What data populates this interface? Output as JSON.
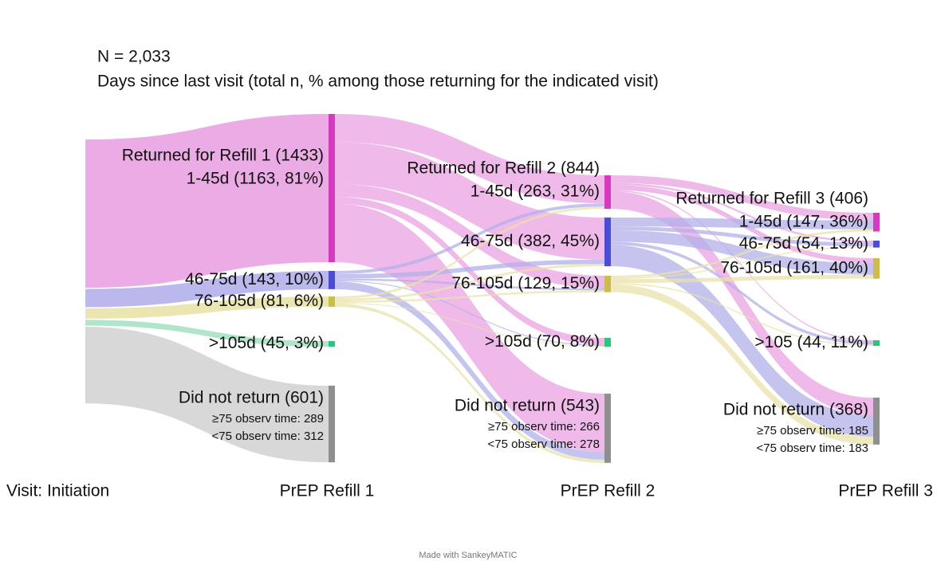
{
  "chart_data": {
    "type": "sankey",
    "n": "N = 2,033",
    "subtitle": "Days since last visit (total n, % among those returning for the indicated visit)",
    "source_label": "Visit: Initiation",
    "stages": [
      {
        "name": "PrEP Refill 1",
        "header": "Returned for Refill 1 (1433)",
        "nodes": [
          {
            "label": "1-45d (1163, 81%)",
            "value": 1163,
            "color": "#d63bbf",
            "flow_color": "#e9a2e1",
            "flows": [
              220,
              330,
              100,
              55,
              458
            ]
          },
          {
            "label": "46-75d (143, 10%)",
            "value": 143,
            "color": "#4b4bd6",
            "flow_color": "#b2b0ea",
            "flows": [
              25,
              35,
              15,
              8,
              60
            ]
          },
          {
            "label": "76-105d (81, 6%)",
            "value": 81,
            "color": "#cbbd4c",
            "flow_color": "#e9e2a9",
            "flows": [
              18,
              17,
              14,
              7,
              25
            ]
          },
          {
            "label": ">105d (45, 3%)",
            "value": 45,
            "color": "#2ec27e",
            "flow_color": "#a9e2c3"
          },
          {
            "label": "Did not return (601)",
            "value": 601,
            "color": "#8f8f8f",
            "flow_color": "#d4d4d4",
            "details": [
              "≥75 observ time: 289",
              "<75 observ time: 312"
            ]
          }
        ]
      },
      {
        "name": "PrEP Refill 2",
        "header": "Returned for Refill 2 (844)",
        "nodes": [
          {
            "label": "1-45d  (263, 31%)",
            "value": 263,
            "color": "#d63bbf",
            "flow_color": "#e9a2e1",
            "flows": [
              60,
              15,
              40,
              10,
              138
            ]
          },
          {
            "label": "46-75d (382, 45%)",
            "value": 382,
            "color": "#4b4bd6",
            "flow_color": "#b2b0ea",
            "flows": [
              70,
              30,
              90,
              24,
              168
            ]
          },
          {
            "label": "76-105d (129, 15%)",
            "value": 129,
            "color": "#cbbd4c",
            "flow_color": "#e9e2a9",
            "flows": [
              17,
              9,
              31,
              10,
              62
            ]
          },
          {
            "label": ">105d (70, 8%)",
            "value": 70,
            "color": "#2ec27e",
            "flow_color": "#a9e2c3"
          },
          {
            "label": "Did not return (543)",
            "value": 543,
            "color": "#8f8f8f",
            "flow_color": "#d4d4d4",
            "details": [
              "≥75 observ time: 266",
              "<75 observ time: 278"
            ]
          }
        ]
      },
      {
        "name": "PrEP Refill 3",
        "header": "Returned for Refill 3 (406)",
        "nodes": [
          {
            "label": "1-45d (147, 36%)",
            "value": 147,
            "color": "#d63bbf",
            "flow_color": "#e9a2e1"
          },
          {
            "label": "46-75d  (54, 13%)",
            "value": 54,
            "color": "#4b4bd6",
            "flow_color": "#b2b0ea"
          },
          {
            "label": "76-105d (161, 40%)",
            "value": 161,
            "color": "#cbbd4c",
            "flow_color": "#e9e2a9"
          },
          {
            "label": ">105 (44, 11%)",
            "value": 44,
            "color": "#2ec27e",
            "flow_color": "#a9e2c3"
          },
          {
            "label": "Did not return (368)",
            "value": 368,
            "color": "#8f8f8f",
            "flow_color": "#d4d4d4",
            "details": [
              "≥75 observ time: 185",
              "<75 observ time: 183"
            ]
          }
        ]
      }
    ],
    "footer": "Made with SankeyMATIC"
  }
}
